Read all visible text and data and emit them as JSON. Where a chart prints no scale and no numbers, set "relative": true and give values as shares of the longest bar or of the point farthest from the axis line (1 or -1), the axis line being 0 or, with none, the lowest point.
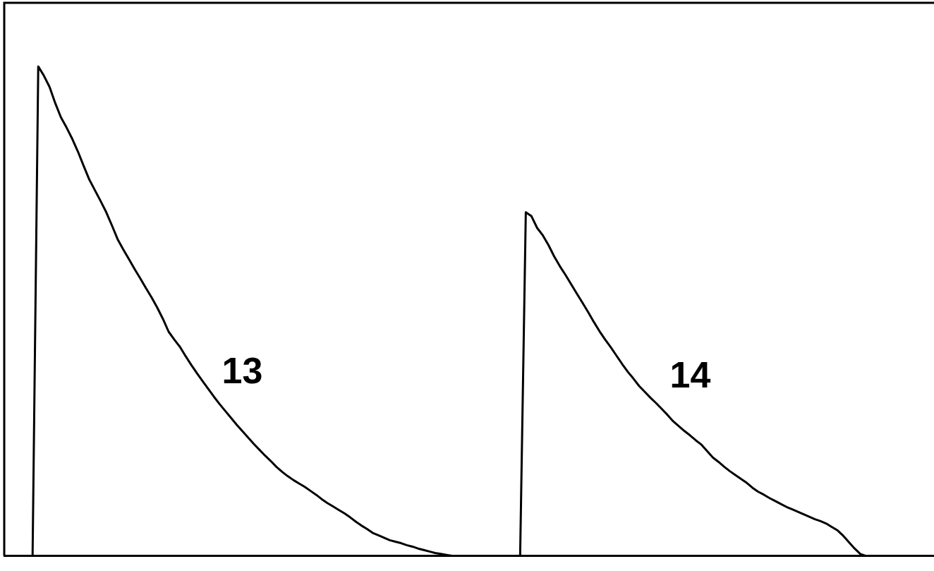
{
  "chart_data": {
    "type": "line",
    "relative": true,
    "categories": [
      null,
      null,
      null,
      null,
      null,
      null,
      null,
      null,
      null,
      null,
      null,
      null,
      null,
      null,
      null,
      null,
      null,
      null,
      null,
      null,
      null,
      null,
      null,
      null,
      null,
      null,
      null,
      null,
      null,
      null,
      null,
      null,
      null,
      null,
      null,
      null,
      null,
      null,
      null,
      null,
      null,
      null,
      null,
      null,
      null,
      null,
      null,
      null,
      null,
      null,
      null,
      null,
      null,
      null,
      null,
      null,
      null,
      null,
      null,
      null,
      null,
      null,
      null,
      null,
      null,
      null,
      null,
      null,
      null,
      null,
      null,
      null,
      null,
      null,
      null,
      null,
      null,
      null,
      null,
      null,
      null,
      null,
      null,
      null,
      null,
      null,
      null,
      null,
      null,
      null,
      null,
      null,
      null,
      null,
      null,
      null,
      null,
      null,
      null,
      null,
      null,
      null,
      null,
      null,
      null,
      null,
      null,
      null,
      null,
      null,
      null,
      null,
      null,
      null,
      null,
      null,
      null,
      null,
      null,
      null,
      null,
      null,
      null,
      null,
      null,
      null,
      null,
      null,
      null,
      null,
      null,
      null,
      null,
      null,
      null,
      null,
      null,
      null,
      null,
      null,
      null,
      null,
      null,
      null,
      null,
      null,
      null,
      null,
      null,
      null,
      null,
      null,
      null,
      null,
      null,
      null,
      null,
      null,
      null,
      null,
      null,
      null,
      null,
      null,
      null
    ],
    "series": [
      {
        "name": "13",
        "color": "#000000",
        "values": [
          null,
          null,
          null,
          null,
          null,
          0,
          1,
          0.981,
          0.958,
          0.925,
          0.896,
          0.875,
          0.852,
          0.826,
          0.797,
          0.769,
          0.747,
          0.725,
          0.702,
          0.675,
          0.647,
          0.626,
          0.606,
          0.586,
          0.567,
          0.547,
          0.528,
          0.507,
          0.484,
          0.458,
          0.442,
          0.427,
          0.408,
          0.39,
          0.373,
          0.357,
          0.341,
          0.325,
          0.31,
          0.296,
          0.282,
          0.268,
          0.255,
          0.242,
          0.229,
          0.217,
          0.205,
          0.194,
          0.182,
          0.172,
          0.163,
          0.155,
          0.148,
          0.141,
          0.133,
          0.125,
          0.116,
          0.108,
          0.101,
          0.094,
          0.087,
          0.079,
          0.07,
          0.062,
          0.055,
          0.047,
          0.042,
          0.037,
          0.032,
          0.029,
          0.026,
          0.022,
          0.019,
          0.015,
          0.012,
          0.009,
          0.006,
          0.004,
          0.002,
          0,
          null,
          null,
          null,
          null,
          null,
          null,
          null,
          null,
          null,
          null,
          null,
          null,
          null,
          null,
          null,
          null,
          null,
          null,
          null,
          null,
          null,
          null,
          null,
          null,
          null,
          null,
          null,
          null,
          null,
          null,
          null,
          null,
          null,
          null,
          null,
          null,
          null,
          null,
          null,
          null,
          null,
          null,
          null,
          null,
          null,
          null,
          null,
          null,
          null,
          null,
          null,
          null,
          null,
          null,
          null,
          null,
          null,
          null,
          null,
          null,
          null,
          null,
          null,
          null,
          null,
          null,
          null,
          null,
          null,
          null,
          null,
          null,
          null,
          null,
          null,
          null,
          null,
          null,
          null,
          null,
          null,
          null,
          null,
          null,
          null
        ]
      },
      {
        "name": "14",
        "color": "#000000",
        "values": [
          null,
          null,
          null,
          null,
          null,
          null,
          null,
          null,
          null,
          null,
          null,
          null,
          null,
          null,
          null,
          null,
          null,
          null,
          null,
          null,
          null,
          null,
          null,
          null,
          null,
          null,
          null,
          null,
          null,
          null,
          null,
          null,
          null,
          null,
          null,
          null,
          null,
          null,
          null,
          null,
          null,
          null,
          null,
          null,
          null,
          null,
          null,
          null,
          null,
          null,
          null,
          null,
          null,
          null,
          null,
          null,
          null,
          null,
          null,
          null,
          null,
          null,
          null,
          null,
          null,
          null,
          null,
          null,
          null,
          null,
          null,
          null,
          null,
          null,
          null,
          null,
          null,
          null,
          null,
          null,
          null,
          null,
          null,
          null,
          null,
          null,
          null,
          null,
          null,
          null,
          null,
          0,
          0.702,
          0.694,
          0.67,
          0.655,
          0.635,
          0.612,
          0.592,
          0.574,
          0.555,
          0.536,
          0.517,
          0.498,
          0.478,
          0.459,
          0.442,
          0.426,
          0.409,
          0.392,
          0.376,
          0.362,
          0.347,
          0.335,
          0.323,
          0.312,
          0.3,
          0.288,
          0.275,
          0.265,
          0.255,
          0.246,
          0.236,
          0.227,
          0.214,
          0.201,
          0.192,
          0.182,
          0.173,
          0.165,
          0.157,
          0.149,
          0.139,
          0.131,
          0.125,
          0.118,
          0.112,
          0.106,
          0.1,
          0.095,
          0.09,
          0.085,
          0.08,
          0.075,
          0.071,
          0.066,
          0.059,
          0.052,
          0.041,
          0.028,
          0.015,
          0.004,
          0,
          null,
          null,
          null,
          null,
          null,
          null,
          null,
          null,
          null,
          null,
          null,
          null
        ]
      }
    ]
  }
}
